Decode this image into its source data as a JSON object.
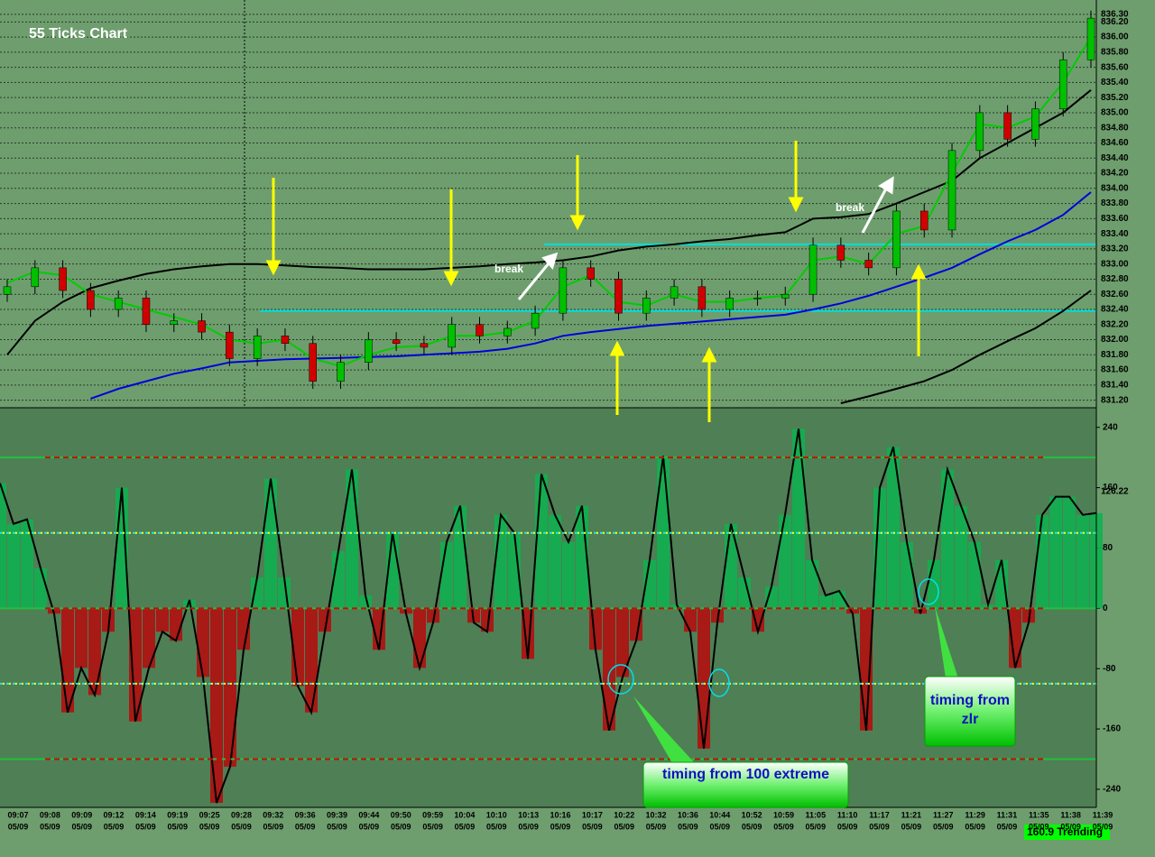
{
  "chart_data": [
    {
      "type": "candlestick",
      "title": "55 Ticks Chart",
      "open": [
        832.6,
        832.7,
        832.95,
        832.65,
        832.4,
        832.55,
        832.2,
        832.25,
        832.1,
        831.75,
        832.05,
        831.95,
        831.45,
        831.7,
        832.0,
        831.95,
        831.9,
        832.2,
        832.05,
        832.15,
        832.35,
        832.95,
        832.8,
        832.35,
        832.55,
        832.7,
        832.4,
        832.55,
        832.55,
        832.6,
        833.25,
        833.05,
        832.95,
        833.7,
        833.45,
        834.5,
        835.0,
        834.65,
        835.05,
        835.7
      ],
      "high": [
        832.8,
        833.05,
        833.05,
        832.75,
        832.65,
        832.65,
        832.35,
        832.35,
        832.2,
        832.15,
        832.15,
        832.05,
        831.8,
        832.1,
        832.1,
        832.05,
        832.3,
        832.3,
        832.25,
        832.45,
        833.05,
        833.05,
        832.9,
        832.65,
        832.8,
        832.8,
        832.65,
        832.65,
        832.7,
        833.35,
        833.35,
        833.15,
        833.8,
        833.8,
        834.6,
        835.1,
        835.1,
        835.15,
        835.8,
        836.35
      ],
      "low": [
        832.5,
        832.6,
        832.55,
        832.3,
        832.3,
        832.1,
        832.1,
        832.0,
        831.65,
        831.65,
        831.85,
        831.35,
        831.35,
        831.6,
        831.85,
        831.8,
        831.8,
        831.95,
        831.95,
        832.05,
        832.25,
        832.7,
        832.25,
        832.25,
        832.45,
        832.3,
        832.3,
        832.45,
        832.45,
        832.5,
        832.95,
        832.85,
        832.85,
        833.35,
        833.35,
        834.4,
        834.55,
        834.55,
        834.95,
        835.6
      ],
      "close": [
        832.7,
        832.95,
        832.65,
        832.4,
        832.55,
        832.2,
        832.25,
        832.1,
        831.75,
        832.05,
        831.95,
        831.45,
        831.7,
        832.0,
        831.95,
        831.9,
        832.2,
        832.05,
        832.15,
        832.35,
        832.95,
        832.8,
        832.35,
        832.55,
        832.7,
        832.4,
        832.55,
        832.55,
        832.6,
        833.25,
        833.05,
        832.95,
        833.7,
        833.45,
        834.5,
        835.0,
        834.65,
        835.05,
        835.7,
        836.25
      ],
      "up_color": "#00c000",
      "down_color": "#d00000",
      "overlays": [
        {
          "color": "#000000",
          "values": [
            831.8,
            832.25,
            832.5,
            832.68,
            832.78,
            832.87,
            832.93,
            832.97,
            833.0,
            833.0,
            832.98,
            832.96,
            832.95,
            832.93,
            832.93,
            832.93,
            832.95,
            832.97,
            833.0,
            833.02,
            833.05,
            833.1,
            833.18,
            833.23,
            833.26,
            833.3,
            833.33,
            833.38,
            833.42,
            833.6,
            833.62,
            833.66,
            833.8,
            833.95,
            834.1,
            834.4,
            834.6,
            834.8,
            835.0,
            835.3
          ]
        },
        {
          "color": "#0000dd",
          "values": [
            null,
            null,
            null,
            831.22,
            831.35,
            831.45,
            831.55,
            831.62,
            831.7,
            831.72,
            831.74,
            831.75,
            831.76,
            831.77,
            831.78,
            831.8,
            831.82,
            831.84,
            831.88,
            831.95,
            832.05,
            832.1,
            832.14,
            832.18,
            832.21,
            832.24,
            832.27,
            832.3,
            832.33,
            832.4,
            832.48,
            832.58,
            832.7,
            832.82,
            832.95,
            833.13,
            833.3,
            833.45,
            833.65,
            833.95
          ]
        },
        {
          "color": "#000000",
          "values": [
            null,
            null,
            null,
            null,
            null,
            null,
            null,
            null,
            null,
            null,
            null,
            null,
            null,
            null,
            null,
            null,
            null,
            null,
            null,
            null,
            null,
            null,
            null,
            null,
            null,
            null,
            null,
            null,
            null,
            null,
            831.16,
            831.25,
            831.35,
            831.45,
            831.6,
            831.8,
            831.98,
            832.15,
            832.38,
            832.65
          ]
        },
        {
          "color": "#00cc00",
          "values": [
            832.75,
            832.9,
            832.85,
            832.6,
            832.5,
            832.4,
            832.3,
            832.2,
            832.0,
            831.95,
            832.0,
            831.75,
            831.65,
            831.8,
            831.9,
            831.92,
            832.05,
            832.05,
            832.1,
            832.25,
            832.7,
            832.85,
            832.5,
            832.45,
            832.6,
            832.5,
            832.5,
            832.55,
            832.58,
            833.05,
            833.1,
            833.0,
            833.4,
            833.5,
            834.2,
            834.85,
            834.8,
            834.95,
            835.4,
            836.0
          ]
        }
      ],
      "hlines": [
        833.26,
        832.38
      ],
      "hline_color": "#00e0e0",
      "annotations": [
        "break",
        "break"
      ],
      "ylim": [
        831.1,
        836.49
      ],
      "yticks": [
        {
          "value": 831.2,
          "label": "831.20"
        },
        {
          "value": 831.4,
          "label": "831.40"
        },
        {
          "value": 831.6,
          "label": "831.60"
        },
        {
          "value": 831.8,
          "label": "831.80"
        },
        {
          "value": 832.0,
          "label": "832.00"
        },
        {
          "value": 832.2,
          "label": "832.20"
        },
        {
          "value": 832.4,
          "label": "832.40"
        },
        {
          "value": 832.6,
          "label": "832.60"
        },
        {
          "value": 832.8,
          "label": "832.80"
        },
        {
          "value": 833.0,
          "label": "833.00"
        },
        {
          "value": 833.2,
          "label": "833.20"
        },
        {
          "value": 833.4,
          "label": "833.40"
        },
        {
          "value": 833.6,
          "label": "833.60"
        },
        {
          "value": 833.8,
          "label": "833.80"
        },
        {
          "value": 834.0,
          "label": "834.00"
        },
        {
          "value": 834.2,
          "label": "834.20"
        },
        {
          "value": 834.4,
          "label": "834.40"
        },
        {
          "value": 834.6,
          "label": "834.60"
        },
        {
          "value": 834.8,
          "label": "834.80"
        },
        {
          "value": 835.0,
          "label": "835.00"
        },
        {
          "value": 835.2,
          "label": "835.20"
        },
        {
          "value": 835.4,
          "label": "835.40"
        },
        {
          "value": 835.6,
          "label": "835.60"
        },
        {
          "value": 835.8,
          "label": "835.80"
        },
        {
          "value": 836.0,
          "label": "836.00"
        },
        {
          "value": 836.2,
          "label": "836.20"
        },
        {
          "value": 836.3,
          "label": "836.30"
        }
      ],
      "grid": true
    },
    {
      "type": "bar",
      "values": [
        166,
        112,
        118,
        53,
        -7,
        -138,
        -79,
        -115,
        -31,
        160,
        -150,
        -79,
        -31,
        -43,
        11,
        -91,
        -258,
        -210,
        -55,
        41,
        172,
        41,
        -103,
        -138,
        -31,
        76,
        184,
        17,
        -55,
        100,
        -7,
        -79,
        -19,
        88,
        136,
        -19,
        -31,
        124,
        100,
        -67,
        178,
        124,
        88,
        136,
        -55,
        -162,
        -91,
        -43,
        64,
        202,
        5,
        -31,
        -186,
        -19,
        112,
        41,
        -31,
        29,
        124,
        238,
        64,
        17,
        23,
        -7,
        -162,
        160,
        214,
        88,
        -7,
        64,
        184,
        136,
        88,
        5,
        64,
        -79,
        -19,
        124,
        148,
        148,
        124,
        126.22
      ],
      "pos_color": "#10b050",
      "neg_color": "#b01010",
      "ylim": [
        -264,
        266
      ],
      "yticks": [
        240,
        160,
        80,
        0,
        -80,
        -160,
        -240
      ],
      "levels": [
        100,
        -100
      ],
      "bands": [
        200,
        0,
        -200
      ],
      "annotations": [
        "timing from 100 extreme",
        "timing from zlr"
      ],
      "status": "160.9 Trending"
    }
  ],
  "x_axis": {
    "labels": [
      "09:07",
      "09:08",
      "09:09",
      "09:12",
      "09:14",
      "09:19",
      "09:25",
      "09:28",
      "09:32",
      "09:36",
      "09:39",
      "09:44",
      "09:50",
      "09:59",
      "10:04",
      "10:10",
      "10:13",
      "10:16",
      "10:17",
      "10:22",
      "10:32",
      "10:36",
      "10:44",
      "10:52",
      "10:59",
      "11:05",
      "11:10",
      "11:17",
      "11:21",
      "11:27",
      "11:29",
      "11:31",
      "11:35",
      "11:38",
      "11:39"
    ],
    "sublabels": [
      "05/09",
      "05/09",
      "05/09",
      "05/09",
      "05/09",
      "05/09",
      "05/09",
      "05/09",
      "05/09",
      "05/09",
      "05/09",
      "05/09",
      "05/09",
      "05/09",
      "05/09",
      "05/09",
      "05/09",
      "05/09",
      "05/09",
      "05/09",
      "05/09",
      "05/09",
      "05/09",
      "05/09",
      "05/09",
      "05/09",
      "05/09",
      "05/09",
      "05/09",
      "05/09",
      "05/09",
      "05/09",
      "05/09",
      "05/09",
      "05/09"
    ]
  }
}
